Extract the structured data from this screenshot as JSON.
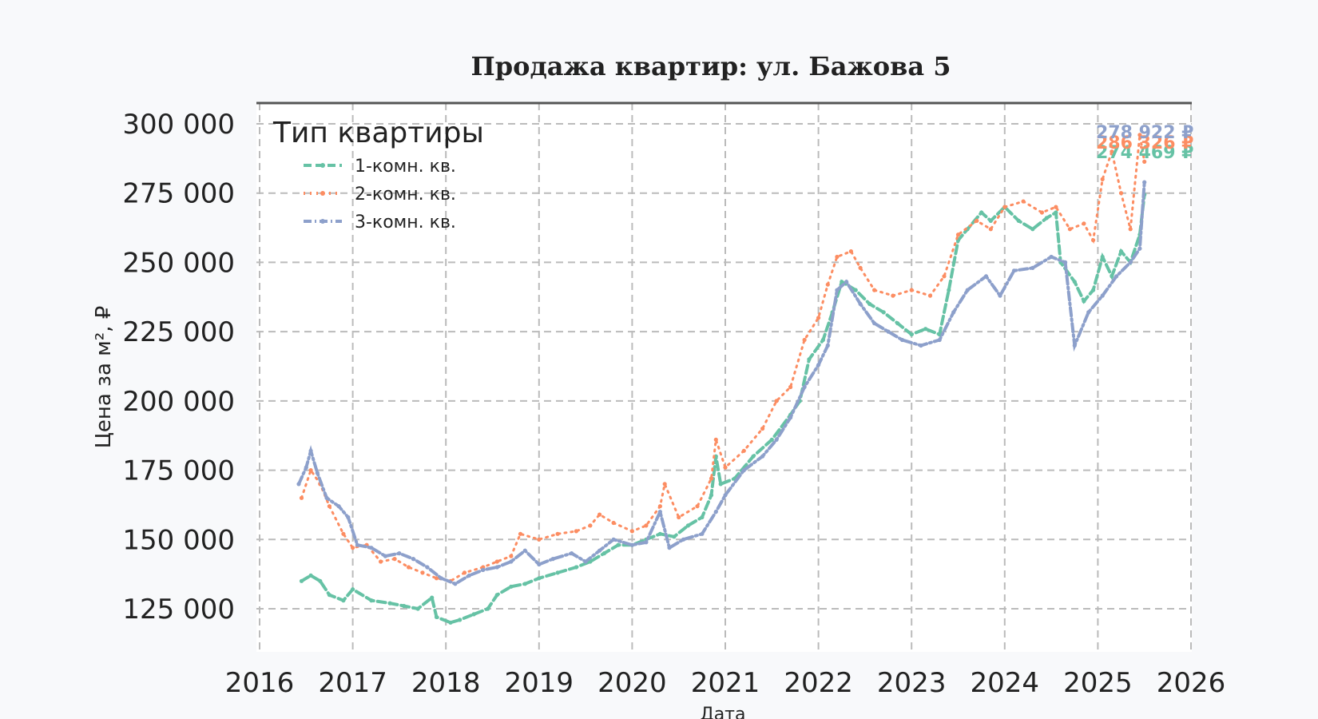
{
  "chart_data": {
    "type": "line",
    "title": "Продажа квартир: ул. Бажова 5",
    "xlabel": "Дата",
    "ylabel": "Цена за м², ₽",
    "xlim": [
      2016,
      2026
    ],
    "ylim": [
      110000,
      307000
    ],
    "x_ticks": [
      "2016",
      "2017",
      "2018",
      "2019",
      "2020",
      "2021",
      "2022",
      "2023",
      "2024",
      "2025",
      "2026"
    ],
    "y_ticks": [
      "125 000",
      "150 000",
      "175 000",
      "200 000",
      "225 000",
      "250 000",
      "275 000",
      "300 000"
    ],
    "y_tick_values": [
      125000,
      150000,
      175000,
      200000,
      225000,
      250000,
      275000,
      300000
    ],
    "grid": true,
    "legend_title": "Тип квартиры",
    "legend_placement": "top-left",
    "series": [
      {
        "name": "1-комн. кв.",
        "color": "#66c2a5",
        "style": "dashed",
        "end_label": "274 469 ₽",
        "points": [
          [
            2016.45,
            135000
          ],
          [
            2016.55,
            137000
          ],
          [
            2016.65,
            135000
          ],
          [
            2016.75,
            130000
          ],
          [
            2016.9,
            128000
          ],
          [
            2017.0,
            132000
          ],
          [
            2017.2,
            128000
          ],
          [
            2017.4,
            127000
          ],
          [
            2017.55,
            126000
          ],
          [
            2017.7,
            125000
          ],
          [
            2017.85,
            129000
          ],
          [
            2017.9,
            122000
          ],
          [
            2018.05,
            120000
          ],
          [
            2018.15,
            121000
          ],
          [
            2018.3,
            123000
          ],
          [
            2018.45,
            125000
          ],
          [
            2018.55,
            130000
          ],
          [
            2018.7,
            133000
          ],
          [
            2018.85,
            134000
          ],
          [
            2019.0,
            136000
          ],
          [
            2019.2,
            138000
          ],
          [
            2019.4,
            140000
          ],
          [
            2019.55,
            142000
          ],
          [
            2019.7,
            145000
          ],
          [
            2019.85,
            148000
          ],
          [
            2020.0,
            148000
          ],
          [
            2020.15,
            150000
          ],
          [
            2020.3,
            152000
          ],
          [
            2020.45,
            151000
          ],
          [
            2020.6,
            155000
          ],
          [
            2020.75,
            158000
          ],
          [
            2020.85,
            166000
          ],
          [
            2020.9,
            180000
          ],
          [
            2020.95,
            170000
          ],
          [
            2021.1,
            172000
          ],
          [
            2021.3,
            180000
          ],
          [
            2021.5,
            186000
          ],
          [
            2021.7,
            195000
          ],
          [
            2021.8,
            200000
          ],
          [
            2021.9,
            215000
          ],
          [
            2022.05,
            222000
          ],
          [
            2022.15,
            232000
          ],
          [
            2022.25,
            243000
          ],
          [
            2022.4,
            240000
          ],
          [
            2022.55,
            235000
          ],
          [
            2022.7,
            232000
          ],
          [
            2022.85,
            228000
          ],
          [
            2023.0,
            224000
          ],
          [
            2023.15,
            226000
          ],
          [
            2023.3,
            224000
          ],
          [
            2023.4,
            240000
          ],
          [
            2023.5,
            258000
          ],
          [
            2023.6,
            262000
          ],
          [
            2023.75,
            268000
          ],
          [
            2023.85,
            265000
          ],
          [
            2024.0,
            270000
          ],
          [
            2024.15,
            265000
          ],
          [
            2024.3,
            262000
          ],
          [
            2024.45,
            266000
          ],
          [
            2024.55,
            268000
          ],
          [
            2024.6,
            250000
          ],
          [
            2024.75,
            243000
          ],
          [
            2024.85,
            236000
          ],
          [
            2024.95,
            240000
          ],
          [
            2025.05,
            252000
          ],
          [
            2025.15,
            245000
          ],
          [
            2025.25,
            254000
          ],
          [
            2025.35,
            250000
          ],
          [
            2025.45,
            260000
          ],
          [
            2025.5,
            274469
          ]
        ]
      },
      {
        "name": "2-комн. кв.",
        "color": "#fc8d62",
        "style": "dotted",
        "end_label": "286 326 ₽",
        "points": [
          [
            2016.45,
            165000
          ],
          [
            2016.55,
            175000
          ],
          [
            2016.65,
            170000
          ],
          [
            2016.75,
            162000
          ],
          [
            2016.9,
            152000
          ],
          [
            2017.0,
            147000
          ],
          [
            2017.15,
            148000
          ],
          [
            2017.3,
            142000
          ],
          [
            2017.45,
            143000
          ],
          [
            2017.6,
            140000
          ],
          [
            2017.75,
            138000
          ],
          [
            2017.9,
            136000
          ],
          [
            2018.05,
            135000
          ],
          [
            2018.2,
            138000
          ],
          [
            2018.4,
            140000
          ],
          [
            2018.55,
            142000
          ],
          [
            2018.7,
            144000
          ],
          [
            2018.8,
            152000
          ],
          [
            2019.0,
            150000
          ],
          [
            2019.2,
            152000
          ],
          [
            2019.4,
            153000
          ],
          [
            2019.55,
            155000
          ],
          [
            2019.65,
            159000
          ],
          [
            2019.8,
            156000
          ],
          [
            2020.0,
            153000
          ],
          [
            2020.15,
            155000
          ],
          [
            2020.3,
            162000
          ],
          [
            2020.35,
            170000
          ],
          [
            2020.5,
            158000
          ],
          [
            2020.7,
            162000
          ],
          [
            2020.85,
            172000
          ],
          [
            2020.9,
            186000
          ],
          [
            2021.0,
            176000
          ],
          [
            2021.2,
            182000
          ],
          [
            2021.4,
            190000
          ],
          [
            2021.55,
            200000
          ],
          [
            2021.7,
            205000
          ],
          [
            2021.85,
            222000
          ],
          [
            2022.0,
            230000
          ],
          [
            2022.1,
            242000
          ],
          [
            2022.2,
            252000
          ],
          [
            2022.35,
            254000
          ],
          [
            2022.45,
            248000
          ],
          [
            2022.6,
            240000
          ],
          [
            2022.8,
            238000
          ],
          [
            2023.0,
            240000
          ],
          [
            2023.2,
            238000
          ],
          [
            2023.35,
            245000
          ],
          [
            2023.5,
            260000
          ],
          [
            2023.7,
            265000
          ],
          [
            2023.85,
            262000
          ],
          [
            2024.0,
            270000
          ],
          [
            2024.2,
            272000
          ],
          [
            2024.4,
            268000
          ],
          [
            2024.55,
            270000
          ],
          [
            2024.7,
            262000
          ],
          [
            2024.85,
            264000
          ],
          [
            2024.95,
            258000
          ],
          [
            2025.05,
            280000
          ],
          [
            2025.15,
            290000
          ],
          [
            2025.25,
            275000
          ],
          [
            2025.35,
            262000
          ],
          [
            2025.45,
            296000
          ],
          [
            2025.5,
            286326
          ]
        ]
      },
      {
        "name": "3-комн. кв.",
        "color": "#8da0cb",
        "style": "dashdot",
        "end_label": "278 922 ₽",
        "points": [
          [
            2016.42,
            170000
          ],
          [
            2016.5,
            176000
          ],
          [
            2016.55,
            182000
          ],
          [
            2016.62,
            174000
          ],
          [
            2016.72,
            165000
          ],
          [
            2016.85,
            162000
          ],
          [
            2016.95,
            158000
          ],
          [
            2017.05,
            148000
          ],
          [
            2017.2,
            147000
          ],
          [
            2017.35,
            144000
          ],
          [
            2017.5,
            145000
          ],
          [
            2017.65,
            143000
          ],
          [
            2017.8,
            140000
          ],
          [
            2017.95,
            136000
          ],
          [
            2018.1,
            134000
          ],
          [
            2018.25,
            137000
          ],
          [
            2018.4,
            139000
          ],
          [
            2018.55,
            140000
          ],
          [
            2018.7,
            142000
          ],
          [
            2018.85,
            146000
          ],
          [
            2019.0,
            141000
          ],
          [
            2019.15,
            143000
          ],
          [
            2019.35,
            145000
          ],
          [
            2019.5,
            142000
          ],
          [
            2019.65,
            146000
          ],
          [
            2019.8,
            150000
          ],
          [
            2020.0,
            148000
          ],
          [
            2020.15,
            149000
          ],
          [
            2020.3,
            160000
          ],
          [
            2020.4,
            147000
          ],
          [
            2020.55,
            150000
          ],
          [
            2020.75,
            152000
          ],
          [
            2020.9,
            160000
          ],
          [
            2021.0,
            166000
          ],
          [
            2021.2,
            175000
          ],
          [
            2021.4,
            180000
          ],
          [
            2021.55,
            186000
          ],
          [
            2021.7,
            194000
          ],
          [
            2021.85,
            205000
          ],
          [
            2022.0,
            213000
          ],
          [
            2022.1,
            220000
          ],
          [
            2022.2,
            240000
          ],
          [
            2022.3,
            243000
          ],
          [
            2022.45,
            235000
          ],
          [
            2022.6,
            228000
          ],
          [
            2022.75,
            225000
          ],
          [
            2022.9,
            222000
          ],
          [
            2023.1,
            220000
          ],
          [
            2023.3,
            222000
          ],
          [
            2023.45,
            232000
          ],
          [
            2023.6,
            240000
          ],
          [
            2023.8,
            245000
          ],
          [
            2023.95,
            238000
          ],
          [
            2024.1,
            247000
          ],
          [
            2024.3,
            248000
          ],
          [
            2024.5,
            252000
          ],
          [
            2024.65,
            250000
          ],
          [
            2024.75,
            220000
          ],
          [
            2024.9,
            232000
          ],
          [
            2025.05,
            238000
          ],
          [
            2025.2,
            245000
          ],
          [
            2025.35,
            250000
          ],
          [
            2025.45,
            255000
          ],
          [
            2025.5,
            278922
          ]
        ]
      }
    ]
  }
}
